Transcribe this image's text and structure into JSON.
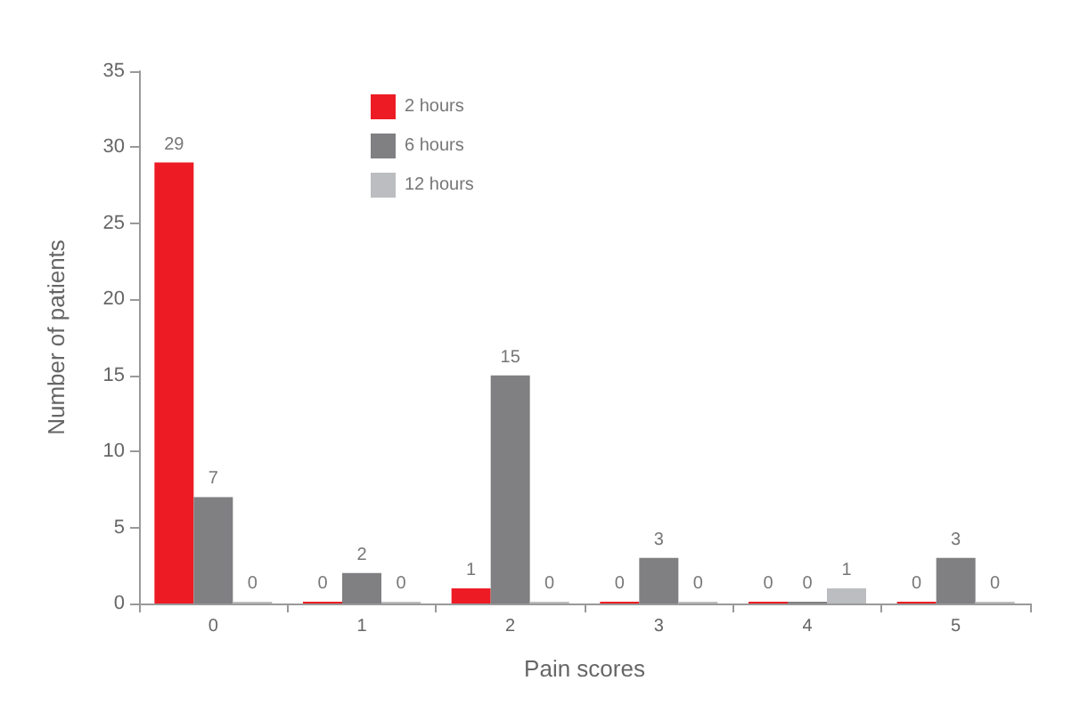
{
  "chart_data": {
    "type": "bar",
    "xlabel": "Pain scores",
    "ylabel": "Number of patients",
    "categories": [
      "0",
      "1",
      "2",
      "3",
      "4",
      "5"
    ],
    "series": [
      {
        "name": "2 hours",
        "color": "#ed1c24",
        "values": [
          29,
          0,
          1,
          0,
          0,
          0
        ]
      },
      {
        "name": "6 hours",
        "color": "#808083",
        "values": [
          7,
          2,
          15,
          3,
          0,
          3
        ]
      },
      {
        "name": "12 hours",
        "color": "#bcbdc0",
        "values": [
          0,
          0,
          0,
          0,
          1,
          0
        ]
      }
    ],
    "ylim": [
      0,
      35
    ],
    "yticks": [
      0,
      5,
      10,
      15,
      20,
      25,
      30,
      35
    ],
    "data_labels": true,
    "legend": "top",
    "grid": false
  }
}
